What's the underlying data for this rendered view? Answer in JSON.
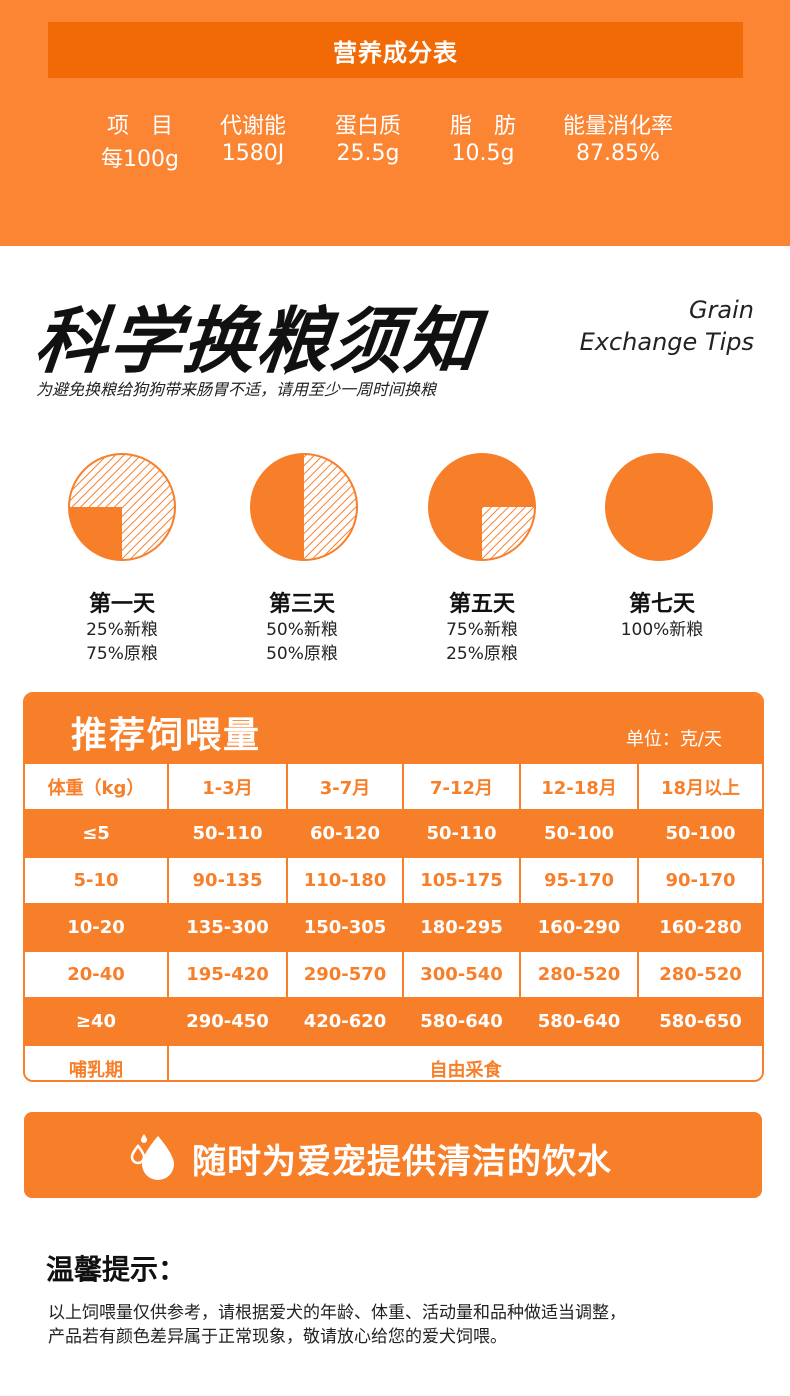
{
  "nutrition": {
    "title": "营养成分表",
    "headers": [
      "项　目",
      "代谢能",
      "蛋白质",
      "脂　肪",
      "能量消化率"
    ],
    "values": [
      "每100g",
      "1580J",
      "25.5g",
      "10.5g",
      "87.85%"
    ]
  },
  "exchange": {
    "title": "科学换粮须知",
    "title_en_line1": "Grain",
    "title_en_line2": "Exchange Tips",
    "subtitle": "为避免换粮给狗狗带来肠胃不适，请用至少一周时间换粮",
    "days": [
      {
        "label": "第一天",
        "new_pct": 25,
        "line1": "25%新粮",
        "line2": "75%原粮"
      },
      {
        "label": "第三天",
        "new_pct": 50,
        "line1": "50%新粮",
        "line2": "50%原粮"
      },
      {
        "label": "第五天",
        "new_pct": 75,
        "line1": "75%新粮",
        "line2": "25%原粮"
      },
      {
        "label": "第七天",
        "new_pct": 100,
        "line1": "100%新粮",
        "line2": ""
      }
    ]
  },
  "feeding": {
    "title": "推荐饲喂量",
    "unit": "单位：克/天",
    "header": [
      "体重（kg）",
      "1-3月",
      "3-7月",
      "7-12月",
      "12-18月",
      "18月以上"
    ],
    "rows": [
      [
        "≤5",
        "50-110",
        "60-120",
        "50-110",
        "50-100",
        "50-100"
      ],
      [
        "5-10",
        "90-135",
        "110-180",
        "105-175",
        "95-170",
        "90-170"
      ],
      [
        "10-20",
        "135-300",
        "150-305",
        "180-295",
        "160-290",
        "160-280"
      ],
      [
        "20-40",
        "195-420",
        "290-570",
        "300-540",
        "280-520",
        "280-520"
      ],
      [
        "≥40",
        "290-450",
        "420-620",
        "580-640",
        "580-640",
        "580-650"
      ]
    ],
    "lactation_label": "哺乳期",
    "lactation_value": "自由采食"
  },
  "water": {
    "text": "随时为爱宠提供清洁的饮水",
    "icon": "water-drop-icon"
  },
  "tips": {
    "title": "温馨提示：",
    "line1": "以上饲喂量仅供参考，请根据爱犬的年龄、体重、活动量和品种做适当调整，",
    "line2": "产品若有颜色差异属于正常现象，敬请放心给您的爱犬饲喂。"
  },
  "colors": {
    "orange": "#f77f2a",
    "orange_dark": "#f26a05",
    "orange_light": "#fb8533",
    "hatch": "#ffffff"
  }
}
